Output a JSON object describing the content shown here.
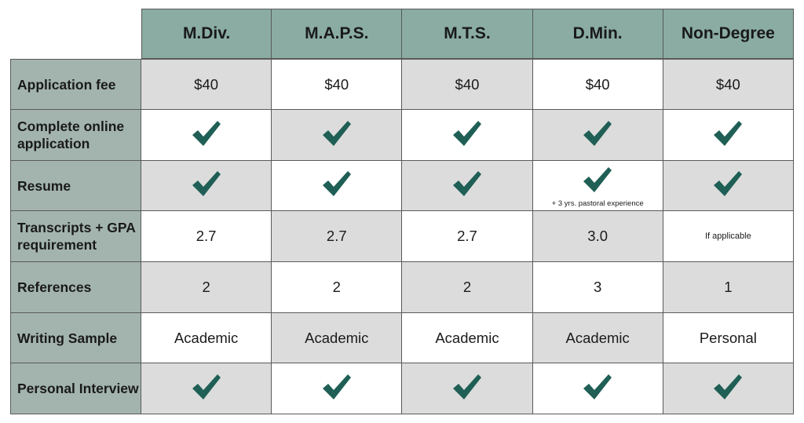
{
  "columns": [
    "M.Div.",
    "M.A.P.S.",
    "M.T.S.",
    "D.Min.",
    "Non-Degree"
  ],
  "rows": [
    {
      "label": "Application fee",
      "cells": [
        "$40",
        "$40",
        "$40",
        "$40",
        "$40"
      ]
    },
    {
      "label": "Complete online application",
      "cells": [
        "check",
        "check",
        "check",
        "check",
        "check"
      ]
    },
    {
      "label": "Resume",
      "cells": [
        "check",
        "check",
        "check",
        "check",
        "check"
      ],
      "notes": [
        "",
        "",
        "",
        "+ 3 yrs. pastoral experience",
        ""
      ]
    },
    {
      "label": "Transcripts + GPA requirement",
      "cells": [
        "2.7",
        "2.7",
        "2.7",
        "3.0",
        "If applicable"
      ]
    },
    {
      "label": "References",
      "cells": [
        "2",
        "2",
        "2",
        "3",
        "1"
      ]
    },
    {
      "label": "Writing Sample",
      "cells": [
        "Academic",
        "Academic",
        "Academic",
        "Academic",
        "Personal"
      ]
    },
    {
      "label": "Personal Interview",
      "cells": [
        "check",
        "check",
        "check",
        "check",
        "check"
      ]
    }
  ],
  "colors": {
    "header": "#8aaca3",
    "label": "#a3b4ae",
    "shade": "#dcdcdc",
    "check": "#1f5f55"
  },
  "icons": {
    "check": "checkmark-icon"
  }
}
